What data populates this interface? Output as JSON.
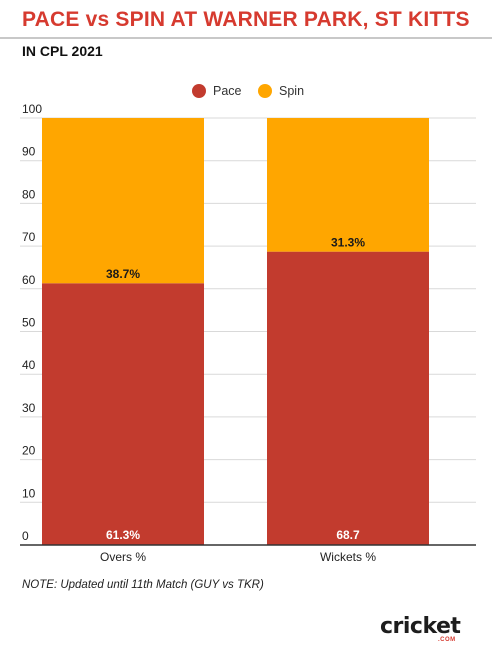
{
  "header": {
    "title": "PACE vs SPIN AT WARNER PARK, ST KITTS",
    "subtitle": "IN CPL 2021"
  },
  "footer": {
    "note": "NOTE: Updated until 11th Match (GUY vs TKR)",
    "logo_text": "cricket",
    "logo_sub": ".COM"
  },
  "colors": {
    "pace": "#c23b2e",
    "spin": "#ffa600",
    "title": "#d63a2f"
  },
  "chart_data": {
    "type": "bar",
    "stacked": true,
    "title": "PACE vs SPIN AT WARNER PARK, ST KITTS",
    "subtitle": "IN CPL 2021",
    "categories": [
      "Overs %",
      "Wickets %"
    ],
    "series": [
      {
        "name": "Pace",
        "values": [
          61.3,
          68.7
        ],
        "labels": [
          "61.3%",
          "68.7"
        ]
      },
      {
        "name": "Spin",
        "values": [
          38.7,
          31.3
        ],
        "labels": [
          "38.7%",
          "31.3%"
        ]
      }
    ],
    "ylim": [
      0,
      100
    ],
    "yticks": [
      0,
      10,
      20,
      30,
      40,
      50,
      60,
      70,
      80,
      90,
      100
    ],
    "grid": true,
    "legend": "top-center"
  }
}
